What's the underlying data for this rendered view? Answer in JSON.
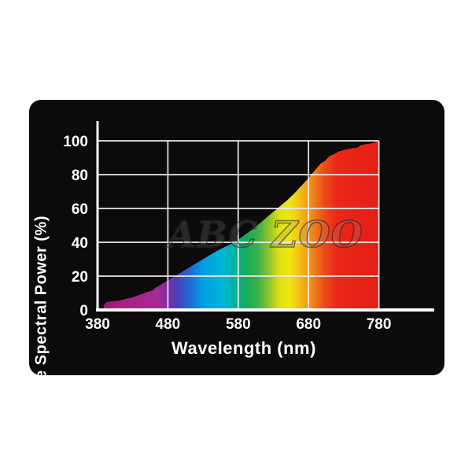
{
  "page": {
    "background": "#ffffff",
    "card_color": "#0d0a0c"
  },
  "watermark": {
    "text": "ABC ZOO"
  },
  "chart_data": {
    "type": "area",
    "title": "",
    "xlabel": "Wavelength (nm)",
    "ylabel": "Relative Spectral Power (%)",
    "xlim": [
      380,
      780
    ],
    "ylim": [
      0,
      100
    ],
    "x_ticks": [
      380,
      480,
      580,
      680,
      780
    ],
    "y_ticks": [
      0,
      20,
      40,
      60,
      80,
      100
    ],
    "grid": true,
    "legend": "none",
    "axis_color": "#ffffff",
    "grid_color": "#eceae8",
    "series": [
      {
        "name": "relative-spectral-power",
        "points": [
          [
            388,
            0
          ],
          [
            389,
            2.5
          ],
          [
            391,
            4
          ],
          [
            394,
            4.8
          ],
          [
            400,
            5
          ],
          [
            406,
            5.3
          ],
          [
            412,
            5.6
          ],
          [
            420,
            6.5
          ],
          [
            430,
            7.5
          ],
          [
            440,
            9
          ],
          [
            450,
            10.5
          ],
          [
            458,
            11.5
          ],
          [
            462,
            13
          ],
          [
            470,
            15
          ],
          [
            480,
            17.5
          ],
          [
            490,
            20
          ],
          [
            500,
            22.5
          ],
          [
            510,
            25
          ],
          [
            520,
            27.5
          ],
          [
            530,
            30
          ],
          [
            540,
            32.5
          ],
          [
            550,
            35
          ],
          [
            560,
            37
          ],
          [
            570,
            39
          ],
          [
            580,
            41.5
          ],
          [
            590,
            44.5
          ],
          [
            600,
            47.5
          ],
          [
            610,
            51
          ],
          [
            620,
            54.5
          ],
          [
            630,
            58
          ],
          [
            640,
            61.5
          ],
          [
            650,
            65
          ],
          [
            660,
            69
          ],
          [
            670,
            73.5
          ],
          [
            680,
            78
          ],
          [
            690,
            83
          ],
          [
            697,
            86.5
          ],
          [
            703,
            88
          ],
          [
            710,
            91
          ],
          [
            716,
            92
          ],
          [
            722,
            93.5
          ],
          [
            730,
            94.5
          ],
          [
            740,
            95.5
          ],
          [
            750,
            96
          ],
          [
            754,
            97.5
          ],
          [
            762,
            98
          ],
          [
            770,
            98.5
          ],
          [
            775,
            99.2
          ],
          [
            780,
            100
          ]
        ]
      }
    ],
    "spectrum_gradient": [
      {
        "wavelength": 390,
        "color": "#9b196d"
      },
      {
        "wavelength": 413,
        "color": "#aa1f83"
      },
      {
        "wavelength": 464,
        "color": "#a62a93"
      },
      {
        "wavelength": 479,
        "color": "#812da6"
      },
      {
        "wavelength": 492,
        "color": "#4c3cb8"
      },
      {
        "wavelength": 511,
        "color": "#2168d4"
      },
      {
        "wavelength": 530,
        "color": "#009ee4"
      },
      {
        "wavelength": 558,
        "color": "#00b7d8"
      },
      {
        "wavelength": 575,
        "color": "#00b19d"
      },
      {
        "wavelength": 593,
        "color": "#19ac55"
      },
      {
        "wavelength": 608,
        "color": "#3bb04a"
      },
      {
        "wavelength": 624,
        "color": "#8ec32a"
      },
      {
        "wavelength": 638,
        "color": "#dfe014"
      },
      {
        "wavelength": 653,
        "color": "#efe513"
      },
      {
        "wavelength": 663,
        "color": "#f2cc15"
      },
      {
        "wavelength": 675,
        "color": "#f4a518"
      },
      {
        "wavelength": 688,
        "color": "#f07e1a"
      },
      {
        "wavelength": 702,
        "color": "#ee4c19"
      },
      {
        "wavelength": 721,
        "color": "#ea2718"
      },
      {
        "wavelength": 780,
        "color": "#e41e15"
      }
    ]
  }
}
